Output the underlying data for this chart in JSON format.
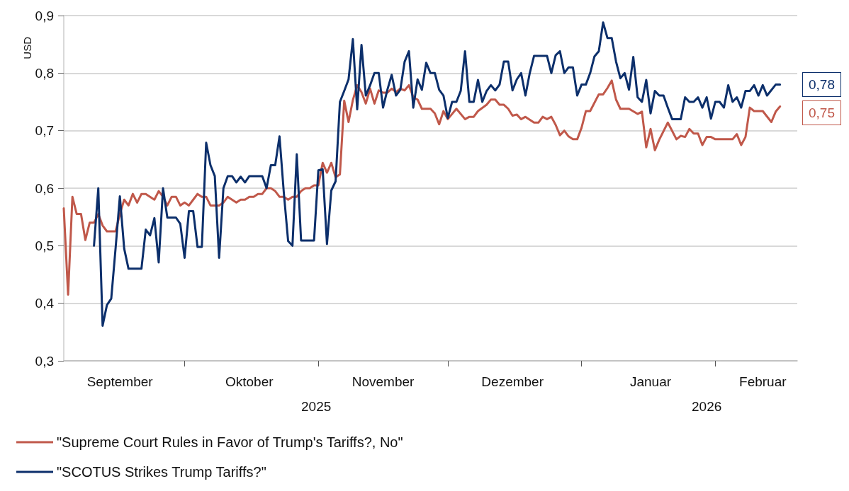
{
  "chart_data": {
    "type": "line",
    "ylabel": "USD",
    "xlim": [
      "2025-09-03",
      "2026-02-20"
    ],
    "ylim": [
      0.3,
      0.9
    ],
    "yticks": [
      {
        "value": 0.3,
        "label": "0,3"
      },
      {
        "value": 0.4,
        "label": "0,4"
      },
      {
        "value": 0.5,
        "label": "0,5"
      },
      {
        "value": 0.6,
        "label": "0,6"
      },
      {
        "value": 0.7,
        "label": "0,7"
      },
      {
        "value": 0.8,
        "label": "0,8"
      },
      {
        "value": 0.9,
        "label": "0,9"
      }
    ],
    "xticks": [
      {
        "value": "2025-09-16",
        "label": "September"
      },
      {
        "value": "2025-10-01",
        "label": null
      },
      {
        "value": "2025-10-16",
        "label": "Oktober"
      },
      {
        "value": "2025-11-01",
        "label": null
      },
      {
        "value": "2025-11-16",
        "label": "November"
      },
      {
        "value": "2025-12-01",
        "label": null
      },
      {
        "value": "2025-12-16",
        "label": "Dezember"
      },
      {
        "value": "2026-01-01",
        "label": null
      },
      {
        "value": "2026-01-17",
        "label": "Januar"
      },
      {
        "value": "2026-02-01",
        "label": null
      },
      {
        "value": "2026-02-12",
        "label": "Februar"
      }
    ],
    "grid": "y",
    "legend": "bottom",
    "marker": "none",
    "line_style": "solid",
    "annotations": [
      "2025",
      "2026",
      {
        "text": "0,78",
        "x": "2026-02-16",
        "y": 0.78
      },
      {
        "text": "0,75",
        "x": "2026-02-16",
        "y": 0.742
      }
    ],
    "series": [
      {
        "name": "\"Supreme Court Rules in Favor of Trump's Tariffs?, No\"",
        "color": "#c0584a",
        "x": [
          "2025-09-03",
          "2025-09-04",
          "2025-09-05",
          "2025-09-06",
          "2025-09-07",
          "2025-09-08",
          "2025-09-09",
          "2025-09-10",
          "2025-09-11",
          "2025-09-12",
          "2025-09-13",
          "2025-09-14",
          "2025-09-15",
          "2025-09-16",
          "2025-09-17",
          "2025-09-18",
          "2025-09-19",
          "2025-09-20",
          "2025-09-21",
          "2025-09-22",
          "2025-09-23",
          "2025-09-24",
          "2025-09-25",
          "2025-09-26",
          "2025-09-27",
          "2025-09-28",
          "2025-09-29",
          "2025-09-30",
          "2025-10-01",
          "2025-10-02",
          "2025-10-03",
          "2025-10-04",
          "2025-10-05",
          "2025-10-06",
          "2025-10-07",
          "2025-10-08",
          "2025-10-09",
          "2025-10-10",
          "2025-10-11",
          "2025-10-12",
          "2025-10-13",
          "2025-10-14",
          "2025-10-15",
          "2025-10-16",
          "2025-10-17",
          "2025-10-18",
          "2025-10-19",
          "2025-10-20",
          "2025-10-21",
          "2025-10-22",
          "2025-10-23",
          "2025-10-24",
          "2025-10-25",
          "2025-10-26",
          "2025-10-27",
          "2025-10-28",
          "2025-10-29",
          "2025-10-30",
          "2025-10-31",
          "2025-11-01",
          "2025-11-02",
          "2025-11-03",
          "2025-11-04",
          "2025-11-05",
          "2025-11-06",
          "2025-11-07",
          "2025-11-08",
          "2025-11-09",
          "2025-11-10",
          "2025-11-11",
          "2025-11-12",
          "2025-11-13",
          "2025-11-14",
          "2025-11-15",
          "2025-11-16",
          "2025-11-17",
          "2025-11-18",
          "2025-11-19",
          "2025-11-20",
          "2025-11-21",
          "2025-11-22",
          "2025-11-23",
          "2025-11-24",
          "2025-11-25",
          "2025-11-27",
          "2025-11-28",
          "2025-11-29",
          "2025-11-30",
          "2025-12-01",
          "2025-12-03",
          "2025-12-05",
          "2025-12-06",
          "2025-12-07",
          "2025-12-08",
          "2025-12-10",
          "2025-12-11",
          "2025-12-12",
          "2025-12-13",
          "2025-12-14",
          "2025-12-15",
          "2025-12-16",
          "2025-12-17",
          "2025-12-18",
          "2025-12-19",
          "2025-12-21",
          "2025-12-22",
          "2025-12-23",
          "2025-12-24",
          "2025-12-25",
          "2025-12-26",
          "2025-12-27",
          "2025-12-28",
          "2025-12-29",
          "2025-12-30",
          "2025-12-31",
          "2026-01-01",
          "2026-01-02",
          "2026-01-03",
          "2026-01-05",
          "2026-01-06",
          "2026-01-07",
          "2026-01-08",
          "2026-01-09",
          "2026-01-10",
          "2026-01-12",
          "2026-01-14",
          "2026-01-15",
          "2026-01-16",
          "2026-01-17",
          "2026-01-18",
          "2026-01-19",
          "2026-01-21",
          "2026-01-23",
          "2026-01-24",
          "2026-01-25",
          "2026-01-26",
          "2026-01-27",
          "2026-01-28",
          "2026-01-29",
          "2026-01-30",
          "2026-01-31",
          "2026-02-01",
          "2026-02-05",
          "2026-02-06",
          "2026-02-07",
          "2026-02-08",
          "2026-02-09",
          "2026-02-10",
          "2026-02-12",
          "2026-02-14",
          "2026-02-15",
          "2026-02-16"
        ],
        "values": [
          0.565,
          0.415,
          0.585,
          0.555,
          0.555,
          0.51,
          0.54,
          0.54,
          0.555,
          0.535,
          0.525,
          0.525,
          0.525,
          0.555,
          0.58,
          0.57,
          0.59,
          0.575,
          0.59,
          0.59,
          0.585,
          0.58,
          0.595,
          0.585,
          0.57,
          0.585,
          0.585,
          0.57,
          0.575,
          0.57,
          0.58,
          0.59,
          0.585,
          0.585,
          0.57,
          0.57,
          0.57,
          0.575,
          0.585,
          0.58,
          0.575,
          0.58,
          0.58,
          0.585,
          0.585,
          0.59,
          0.59,
          0.6,
          0.6,
          0.595,
          0.585,
          0.585,
          0.58,
          0.585,
          0.585,
          0.595,
          0.6,
          0.6,
          0.605,
          0.605,
          0.644,
          0.627,
          0.644,
          0.619,
          0.624,
          0.752,
          0.715,
          0.753,
          0.779,
          0.767,
          0.747,
          0.773,
          0.747,
          0.77,
          0.766,
          0.766,
          0.773,
          0.767,
          0.773,
          0.77,
          0.779,
          0.758,
          0.754,
          0.738,
          0.738,
          0.73,
          0.711,
          0.734,
          0.72,
          0.738,
          0.72,
          0.724,
          0.724,
          0.734,
          0.745,
          0.754,
          0.754,
          0.745,
          0.745,
          0.738,
          0.726,
          0.728,
          0.72,
          0.724,
          0.714,
          0.714,
          0.724,
          0.72,
          0.724,
          0.71,
          0.692,
          0.7,
          0.69,
          0.685,
          0.685,
          0.705,
          0.734,
          0.734,
          0.763,
          0.763,
          0.774,
          0.787,
          0.754,
          0.738,
          0.738,
          0.729,
          0.733,
          0.671,
          0.703,
          0.666,
          0.684,
          0.714,
          0.685,
          0.691,
          0.689,
          0.703,
          0.695,
          0.695,
          0.675,
          0.689,
          0.689,
          0.685,
          0.685,
          0.694,
          0.675,
          0.689,
          0.74,
          0.734,
          0.734,
          0.715,
          0.733,
          0.742
        ]
      },
      {
        "name": "\"SCOTUS Strikes Trump Tariffs?\"",
        "color": "#0c2f6b",
        "x": [
          "2025-09-10",
          "2025-09-11",
          "2025-09-12",
          "2025-09-13",
          "2025-09-14",
          "2025-09-15",
          "2025-09-16",
          "2025-09-17",
          "2025-09-18",
          "2025-09-21",
          "2025-09-22",
          "2025-09-23",
          "2025-09-24",
          "2025-09-25",
          "2025-09-26",
          "2025-09-27",
          "2025-09-29",
          "2025-09-30",
          "2025-10-01",
          "2025-10-02",
          "2025-10-03",
          "2025-10-04",
          "2025-10-05",
          "2025-10-06",
          "2025-10-07",
          "2025-10-08",
          "2025-10-09",
          "2025-10-10",
          "2025-10-11",
          "2025-10-12",
          "2025-10-13",
          "2025-10-14",
          "2025-10-15",
          "2025-10-16",
          "2025-10-19",
          "2025-10-20",
          "2025-10-21",
          "2025-10-22",
          "2025-10-23",
          "2025-10-24",
          "2025-10-25",
          "2025-10-26",
          "2025-10-27",
          "2025-10-28",
          "2025-10-31",
          "2025-11-01",
          "2025-11-02",
          "2025-11-03",
          "2025-11-04",
          "2025-11-05",
          "2025-11-06",
          "2025-11-07",
          "2025-11-08",
          "2025-11-09",
          "2025-11-10",
          "2025-11-11",
          "2025-11-12",
          "2025-11-13",
          "2025-11-14",
          "2025-11-15",
          "2025-11-16",
          "2025-11-17",
          "2025-11-18",
          "2025-11-19",
          "2025-11-20",
          "2025-11-21",
          "2025-11-22",
          "2025-11-23",
          "2025-11-24",
          "2025-11-25",
          "2025-11-26",
          "2025-11-27",
          "2025-11-28",
          "2025-11-29",
          "2025-11-30",
          "2025-12-01",
          "2025-12-02",
          "2025-12-03",
          "2025-12-04",
          "2025-12-05",
          "2025-12-06",
          "2025-12-07",
          "2025-12-08",
          "2025-12-09",
          "2025-12-10",
          "2025-12-11",
          "2025-12-12",
          "2025-12-13",
          "2025-12-14",
          "2025-12-15",
          "2025-12-16",
          "2025-12-17",
          "2025-12-18",
          "2025-12-19",
          "2025-12-20",
          "2025-12-21",
          "2025-12-24",
          "2025-12-25",
          "2025-12-26",
          "2025-12-27",
          "2025-12-28",
          "2025-12-29",
          "2025-12-30",
          "2025-12-31",
          "2026-01-01",
          "2026-01-02",
          "2026-01-03",
          "2026-01-04",
          "2026-01-05",
          "2026-01-06",
          "2026-01-07",
          "2026-01-08",
          "2026-01-09",
          "2026-01-10",
          "2026-01-11",
          "2026-01-12",
          "2026-01-13",
          "2026-01-14",
          "2026-01-15",
          "2026-01-16",
          "2026-01-17",
          "2026-01-18",
          "2026-01-19",
          "2026-01-20",
          "2026-01-21",
          "2026-01-22",
          "2026-01-24",
          "2026-01-25",
          "2026-01-26",
          "2026-01-27",
          "2026-01-28",
          "2026-01-29",
          "2026-01-30",
          "2026-01-31",
          "2026-02-01",
          "2026-02-02",
          "2026-02-03",
          "2026-02-04",
          "2026-02-05",
          "2026-02-06",
          "2026-02-07",
          "2026-02-08",
          "2026-02-09",
          "2026-02-10",
          "2026-02-11",
          "2026-02-12",
          "2026-02-13",
          "2026-02-15",
          "2026-02-16"
        ],
        "values": [
          0.5,
          0.6,
          0.361,
          0.397,
          0.408,
          0.495,
          0.586,
          0.495,
          0.46,
          0.46,
          0.528,
          0.518,
          0.548,
          0.471,
          0.6,
          0.549,
          0.549,
          0.538,
          0.479,
          0.56,
          0.56,
          0.498,
          0.498,
          0.679,
          0.64,
          0.621,
          0.479,
          0.6,
          0.621,
          0.621,
          0.61,
          0.62,
          0.61,
          0.621,
          0.621,
          0.6,
          0.64,
          0.64,
          0.69,
          0.592,
          0.508,
          0.5,
          0.659,
          0.509,
          0.509,
          0.631,
          0.633,
          0.503,
          0.596,
          0.612,
          0.75,
          0.769,
          0.789,
          0.859,
          0.737,
          0.849,
          0.761,
          0.779,
          0.8,
          0.8,
          0.74,
          0.771,
          0.797,
          0.761,
          0.771,
          0.82,
          0.838,
          0.74,
          0.789,
          0.771,
          0.818,
          0.8,
          0.8,
          0.771,
          0.761,
          0.722,
          0.75,
          0.75,
          0.769,
          0.838,
          0.75,
          0.75,
          0.788,
          0.75,
          0.769,
          0.779,
          0.77,
          0.78,
          0.82,
          0.82,
          0.77,
          0.789,
          0.8,
          0.761,
          0.8,
          0.83,
          0.83,
          0.8,
          0.831,
          0.838,
          0.8,
          0.81,
          0.81,
          0.761,
          0.78,
          0.78,
          0.8,
          0.829,
          0.838,
          0.888,
          0.861,
          0.861,
          0.82,
          0.791,
          0.8,
          0.771,
          0.828,
          0.758,
          0.75,
          0.788,
          0.73,
          0.769,
          0.761,
          0.761,
          0.74,
          0.72,
          0.72,
          0.758,
          0.75,
          0.75,
          0.758,
          0.74,
          0.758,
          0.721,
          0.75,
          0.75,
          0.74,
          0.779,
          0.75,
          0.758,
          0.74,
          0.769,
          0.769,
          0.779,
          0.761,
          0.779,
          0.761,
          0.78,
          0.78
        ]
      }
    ]
  }
}
